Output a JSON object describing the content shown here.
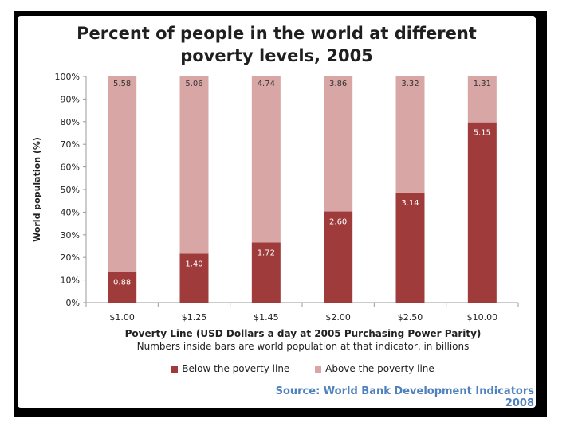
{
  "source_text": "Source: World Bank Development Indicators 2008",
  "colors": {
    "below": "#9f3b3b",
    "above": "#d9a6a6",
    "source": "#4f81bd"
  },
  "chart_data": {
    "type": "bar",
    "stacked": true,
    "title_line1": "Percent of people in the world at different",
    "title_line2": "poverty levels, 2005",
    "xlabel": "Poverty Line (USD Dollars a day at 2005 Purchasing Power Parity)",
    "note": "Numbers inside bars are world population at that indicator, in billions",
    "ylabel": "World population (%)",
    "ylim": [
      0,
      100
    ],
    "yticks": [
      "0%",
      "10%",
      "20%",
      "30%",
      "40%",
      "50%",
      "60%",
      "70%",
      "80%",
      "90%",
      "100%"
    ],
    "categories": [
      "$1.00",
      "$1.25",
      "$1.45",
      "$2.00",
      "$2.50",
      "$10.00"
    ],
    "series": [
      {
        "name": "Below the poverty line",
        "values_pct": [
          13.6,
          21.7,
          26.6,
          40.3,
          48.6,
          79.7
        ],
        "labels": [
          "0.88",
          "1.40",
          "1.72",
          "2.60",
          "3.14",
          "5.15"
        ]
      },
      {
        "name": "Above the poverty line",
        "values_pct": [
          86.4,
          78.3,
          73.4,
          59.7,
          51.4,
          20.3
        ],
        "labels": [
          "5.58",
          "5.06",
          "4.74",
          "3.86",
          "3.32",
          "1.31"
        ]
      }
    ],
    "legend_position": "bottom",
    "grid": false
  }
}
